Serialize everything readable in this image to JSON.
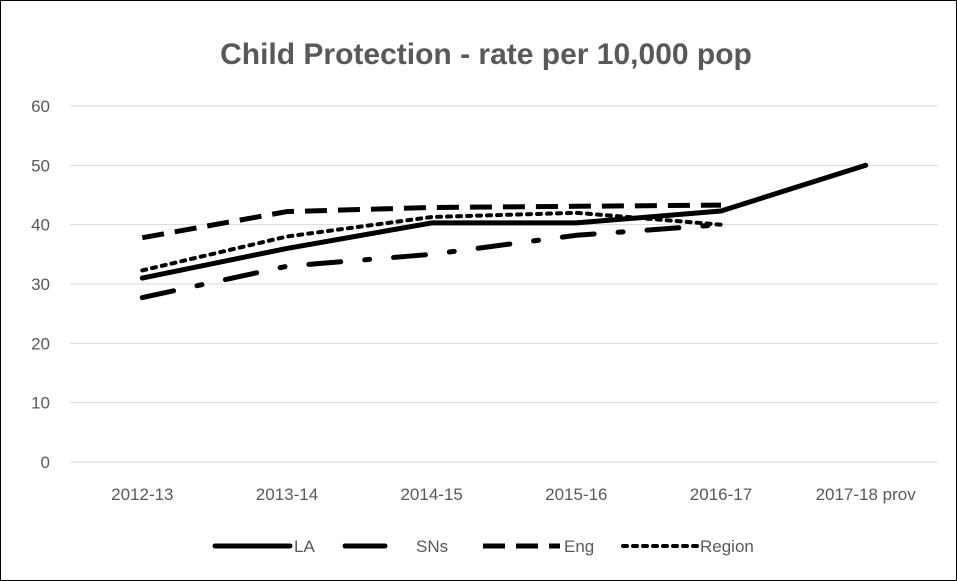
{
  "chart_data": {
    "type": "line",
    "title": "Child Protection - rate per 10,000 pop",
    "categories": [
      "2012-13",
      "2013-14",
      "2014-15",
      "2015-16",
      "2016-17",
      "2017-18 prov"
    ],
    "ylim": [
      0,
      60
    ],
    "yticks": [
      0,
      10,
      20,
      30,
      40,
      50,
      60
    ],
    "grid": true,
    "legend_position": "bottom",
    "series": [
      {
        "name": "LA",
        "values": [
          31,
          36,
          40.3,
          40.3,
          42.3,
          50
        ],
        "dash": "solid",
        "color": "#000000"
      },
      {
        "name": "SNs",
        "values": [
          27.7,
          33,
          35,
          38.2,
          40,
          null
        ],
        "dash": "long-dash-dot",
        "color": "#000000"
      },
      {
        "name": "Eng",
        "values": [
          37.8,
          42.2,
          42.9,
          43.1,
          43.3,
          null
        ],
        "dash": "dash",
        "color": "#000000"
      },
      {
        "name": "Region",
        "values": [
          32.3,
          38,
          41.3,
          42,
          40,
          null
        ],
        "dash": "dot",
        "color": "#000000"
      }
    ]
  }
}
